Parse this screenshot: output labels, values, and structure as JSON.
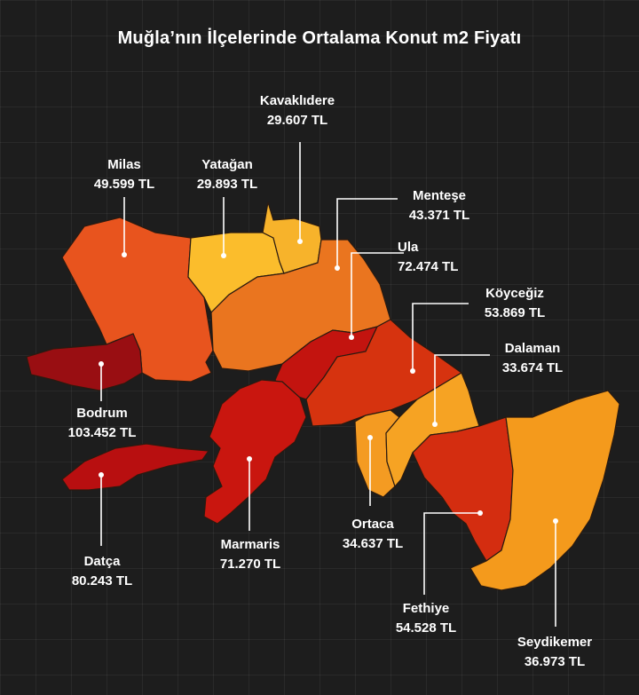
{
  "title": "Muğla’nın İlçelerinde Ortalama Konut m2 Fiyatı",
  "districts": [
    {
      "id": "kavaklidere",
      "name": "Kavaklıdere",
      "price": "29.607 TL",
      "price_tl": 29607,
      "color": "#f7b32b"
    },
    {
      "id": "milas",
      "name": "Milas",
      "price": "49.599 TL",
      "price_tl": 49599,
      "color": "#e8541e"
    },
    {
      "id": "yatagan",
      "name": "Yatağan",
      "price": "29.893 TL",
      "price_tl": 29893,
      "color": "#fbbd2c"
    },
    {
      "id": "mentese",
      "name": "Menteşe",
      "price": "43.371 TL",
      "price_tl": 43371,
      "color": "#ea751f"
    },
    {
      "id": "ula",
      "name": "Ula",
      "price": "72.474 TL",
      "price_tl": 72474,
      "color": "#c3140f"
    },
    {
      "id": "koycegiz",
      "name": "Köyceğiz",
      "price": "53.869 TL",
      "price_tl": 53869,
      "color": "#d6330f"
    },
    {
      "id": "dalaman",
      "name": "Dalaman",
      "price": "33.674 TL",
      "price_tl": 33674,
      "color": "#f6a323"
    },
    {
      "id": "bodrum",
      "name": "Bodrum",
      "price": "103.452 TL",
      "price_tl": 103452,
      "color": "#990e12"
    },
    {
      "id": "ortaca",
      "name": "Ortaca",
      "price": "34.637 TL",
      "price_tl": 34637,
      "color": "#f49b22"
    },
    {
      "id": "datca",
      "name": "Datça",
      "price": "80.243 TL",
      "price_tl": 80243,
      "color": "#b80f10"
    },
    {
      "id": "marmaris",
      "name": "Marmaris",
      "price": "71.270 TL",
      "price_tl": 71270,
      "color": "#c9160f"
    },
    {
      "id": "fethiye",
      "name": "Fethiye",
      "price": "54.528 TL",
      "price_tl": 54528,
      "color": "#d42d10"
    },
    {
      "id": "seydikemer",
      "name": "Seydikemer",
      "price": "36.973 TL",
      "price_tl": 36973,
      "color": "#f49a1c"
    }
  ]
}
